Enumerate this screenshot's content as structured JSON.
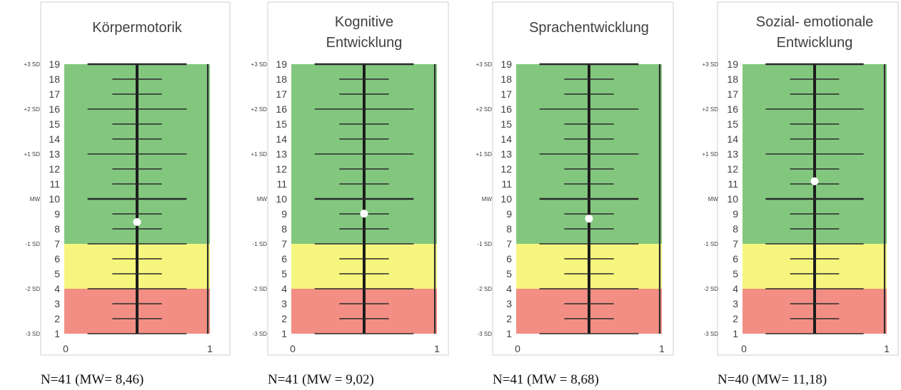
{
  "colors": {
    "green": "#83c77f",
    "yellow": "#f6f67f",
    "red": "#f28e84",
    "marker": "#ffffff",
    "scale_lines": "#2a2a2a"
  },
  "chart_data": [
    {
      "type": "scatter",
      "title": "Körpermotorik",
      "x": [
        0.5
      ],
      "y": [
        8.46
      ],
      "xlim": [
        0,
        1
      ],
      "ylim": [
        1,
        19
      ],
      "x_ticks": [
        "0",
        "1"
      ],
      "y_ticks": [
        1,
        2,
        3,
        4,
        5,
        6,
        7,
        8,
        9,
        10,
        11,
        12,
        13,
        14,
        15,
        16,
        17,
        18,
        19
      ],
      "sd_labels": [
        {
          "y": 19,
          "label": "+3 SD"
        },
        {
          "y": 16,
          "label": "+2 SD"
        },
        {
          "y": 13,
          "label": "+1 SD"
        },
        {
          "y": 10,
          "label": "MW"
        },
        {
          "y": 7,
          "label": "-1 SD"
        },
        {
          "y": 4,
          "label": "-2 SD"
        },
        {
          "y": 1,
          "label": "-3 SD"
        }
      ],
      "bands": [
        {
          "from": 1,
          "to": 4,
          "color": "red"
        },
        {
          "from": 4,
          "to": 7,
          "color": "yellow"
        },
        {
          "from": 7,
          "to": 19,
          "color": "green"
        }
      ],
      "caption": "N=41 (MW= 8,46)"
    },
    {
      "type": "scatter",
      "title": "Kognitive Entwicklung",
      "x": [
        0.5
      ],
      "y": [
        9.02
      ],
      "xlim": [
        0,
        1
      ],
      "ylim": [
        1,
        19
      ],
      "x_ticks": [
        "0",
        "1"
      ],
      "y_ticks": [
        1,
        2,
        3,
        4,
        5,
        6,
        7,
        8,
        9,
        10,
        11,
        12,
        13,
        14,
        15,
        16,
        17,
        18,
        19
      ],
      "sd_labels": [
        {
          "y": 19,
          "label": "+3 SD"
        },
        {
          "y": 16,
          "label": "+2 SD"
        },
        {
          "y": 13,
          "label": "+1 SD"
        },
        {
          "y": 10,
          "label": "MW"
        },
        {
          "y": 7,
          "label": "-1 SD"
        },
        {
          "y": 4,
          "label": "-2 SD"
        },
        {
          "y": 1,
          "label": "-3 SD"
        }
      ],
      "bands": [
        {
          "from": 1,
          "to": 4,
          "color": "red"
        },
        {
          "from": 4,
          "to": 7,
          "color": "yellow"
        },
        {
          "from": 7,
          "to": 19,
          "color": "green"
        }
      ],
      "caption": "N=41 (MW = 9,02)"
    },
    {
      "type": "scatter",
      "title": "Sprachentwicklung",
      "x": [
        0.5
      ],
      "y": [
        8.68
      ],
      "xlim": [
        0,
        1
      ],
      "ylim": [
        1,
        19
      ],
      "x_ticks": [
        "0",
        "1"
      ],
      "y_ticks": [
        1,
        2,
        3,
        4,
        5,
        6,
        7,
        8,
        9,
        10,
        11,
        12,
        13,
        14,
        15,
        16,
        17,
        18,
        19
      ],
      "sd_labels": [
        {
          "y": 19,
          "label": "+3 SD"
        },
        {
          "y": 16,
          "label": "+2 SD"
        },
        {
          "y": 13,
          "label": "+1 SD"
        },
        {
          "y": 10,
          "label": "MW"
        },
        {
          "y": 7,
          "label": "-1 SD"
        },
        {
          "y": 4,
          "label": "-2 SD"
        },
        {
          "y": 1,
          "label": "-3 SD"
        }
      ],
      "bands": [
        {
          "from": 1,
          "to": 4,
          "color": "red"
        },
        {
          "from": 4,
          "to": 7,
          "color": "yellow"
        },
        {
          "from": 7,
          "to": 19,
          "color": "green"
        }
      ],
      "caption": "N=41 (MW = 8,68)"
    },
    {
      "type": "scatter",
      "title": "Sozial- emotionale Entwicklung",
      "x": [
        0.5
      ],
      "y": [
        11.18
      ],
      "xlim": [
        0,
        1
      ],
      "ylim": [
        1,
        19
      ],
      "x_ticks": [
        "0",
        "1"
      ],
      "y_ticks": [
        1,
        2,
        3,
        4,
        5,
        6,
        7,
        8,
        9,
        10,
        11,
        12,
        13,
        14,
        15,
        16,
        17,
        18,
        19
      ],
      "sd_labels": [
        {
          "y": 19,
          "label": "+3 SD"
        },
        {
          "y": 16,
          "label": "+2 SD"
        },
        {
          "y": 13,
          "label": "+1 SD"
        },
        {
          "y": 10,
          "label": "MW"
        },
        {
          "y": 7,
          "label": "-1 SD"
        },
        {
          "y": 4,
          "label": "-2 SD"
        },
        {
          "y": 1,
          "label": "-3 SD"
        }
      ],
      "bands": [
        {
          "from": 1,
          "to": 4,
          "color": "red"
        },
        {
          "from": 4,
          "to": 7,
          "color": "yellow"
        },
        {
          "from": 7,
          "to": 19,
          "color": "green"
        }
      ],
      "caption": "N=40 (MW= 11,18)"
    }
  ]
}
